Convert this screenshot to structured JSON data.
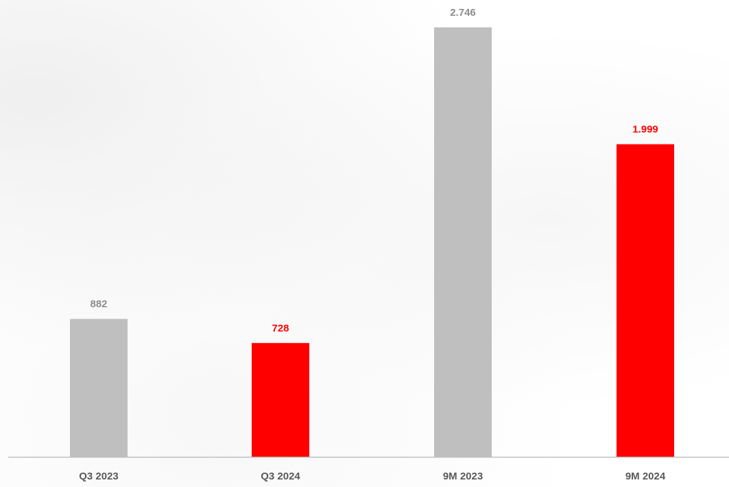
{
  "chart_data": {
    "type": "bar",
    "title": "",
    "xlabel": "",
    "ylabel": "",
    "categories": [
      "Q3 2023",
      "Q3 2024",
      "9M 2023",
      "9M 2024"
    ],
    "values": [
      882,
      728,
      2746,
      1999
    ],
    "value_labels": [
      "882",
      "728",
      "2.746",
      "1.999"
    ],
    "bar_colors": [
      "#bfbfbf",
      "#ff0000",
      "#bfbfbf",
      "#ff0000"
    ],
    "label_colors": [
      "#8c8c8c",
      "#ff0000",
      "#8c8c8c",
      "#ff0000"
    ],
    "axis_color": "#bfbfbf",
    "ylim": [
      0,
      2746
    ],
    "grid": false,
    "legend": false
  }
}
